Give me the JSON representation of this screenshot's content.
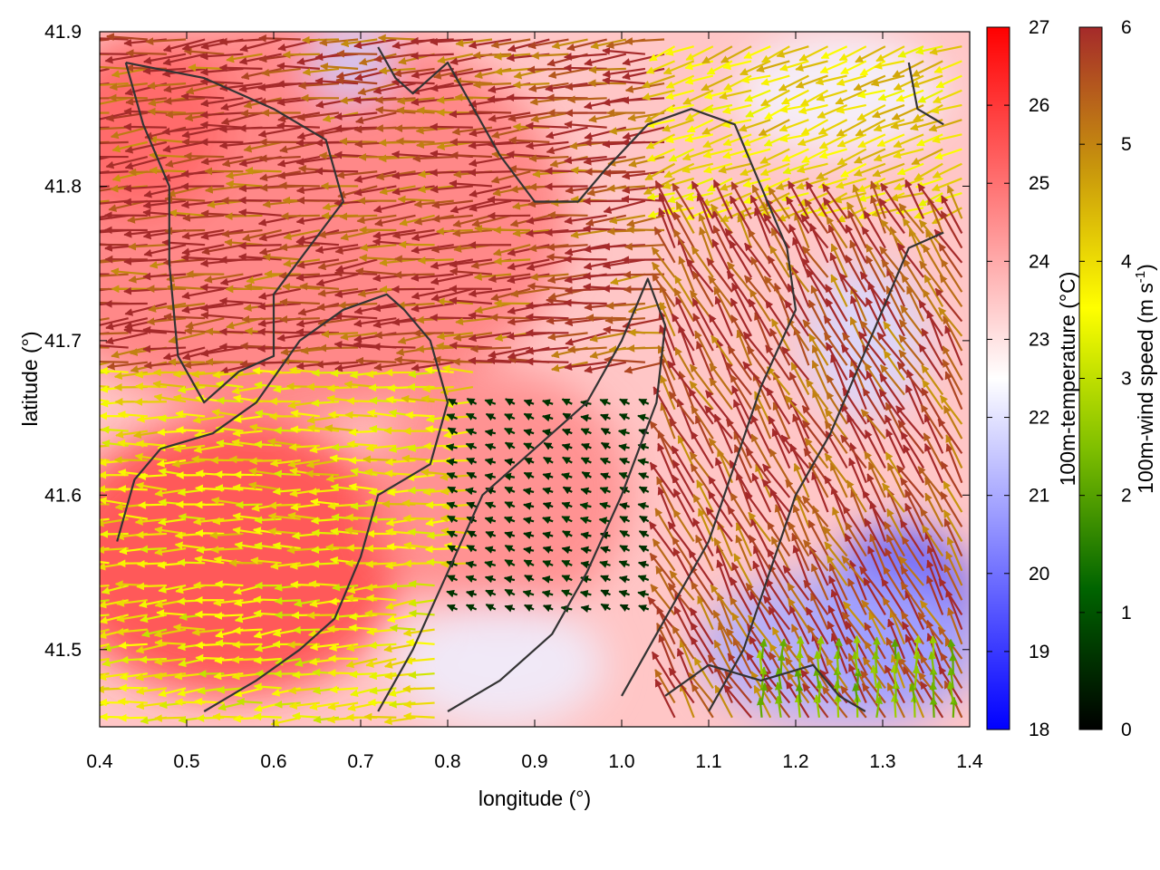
{
  "chart_data": {
    "type": "heatmap",
    "xlabel": "longitude (°)",
    "ylabel": "latitude (°)",
    "xlim": [
      0.4,
      1.4
    ],
    "ylim": [
      41.45,
      41.9
    ],
    "x_ticks": [
      "0.4",
      "0.5",
      "0.6",
      "0.7",
      "0.8",
      "0.9",
      "1.0",
      "1.1",
      "1.2",
      "1.3",
      "1.4"
    ],
    "y_ticks": [
      "41.5",
      "41.6",
      "41.7",
      "41.8",
      "41.9"
    ],
    "temperature_colorbar": {
      "label": "100m-temperature (°C)",
      "range": [
        18,
        27
      ],
      "ticks": [
        "18",
        "19",
        "20",
        "21",
        "22",
        "23",
        "24",
        "25",
        "26",
        "27"
      ],
      "colors": [
        "#0000ff",
        "#ffffff",
        "#ff0000"
      ]
    },
    "wind_colorbar": {
      "label_main": "100m-wind speed (m s",
      "label_sup": "-1",
      "label_end": ")",
      "range": [
        0,
        6
      ],
      "ticks": [
        "0",
        "1",
        "2",
        "3",
        "4",
        "5",
        "6"
      ],
      "colors": [
        "#000000",
        "#006400",
        "#7fbf00",
        "#ffff00",
        "#c8960c",
        "#a52a2a"
      ]
    },
    "temperature_patches": [
      {
        "lon": 0.62,
        "lat": 41.78,
        "rx": 0.32,
        "ry": 0.13,
        "t": 24.8
      },
      {
        "lon": 0.55,
        "lat": 41.56,
        "rx": 0.2,
        "ry": 0.09,
        "t": 25.8
      },
      {
        "lon": 0.45,
        "lat": 41.84,
        "rx": 0.1,
        "ry": 0.06,
        "t": 25.2
      },
      {
        "lon": 0.86,
        "lat": 41.6,
        "rx": 0.15,
        "ry": 0.08,
        "t": 24.6
      },
      {
        "lon": 0.86,
        "lat": 41.49,
        "rx": 0.12,
        "ry": 0.04,
        "t": 22.2
      },
      {
        "lon": 1.32,
        "lat": 41.52,
        "rx": 0.09,
        "ry": 0.06,
        "t": 19.5
      },
      {
        "lon": 1.25,
        "lat": 41.5,
        "rx": 0.16,
        "ry": 0.05,
        "t": 21.0
      },
      {
        "lon": 1.28,
        "lat": 41.7,
        "rx": 0.07,
        "ry": 0.05,
        "t": 21.8
      },
      {
        "lon": 1.25,
        "lat": 41.86,
        "rx": 0.12,
        "ry": 0.04,
        "t": 22.3
      },
      {
        "lon": 0.69,
        "lat": 41.88,
        "rx": 0.05,
        "ry": 0.025,
        "t": 21.6
      }
    ],
    "wind_field": {
      "background_temperature": 23.5,
      "field_regions": [
        {
          "name": "north",
          "lon": [
            0.4,
            1.05
          ],
          "lat": [
            41.68,
            41.9
          ],
          "dir_deg": 185,
          "speed": 6.0
        },
        {
          "name": "northeast",
          "lon": [
            1.05,
            1.4
          ],
          "lat": [
            41.78,
            41.9
          ],
          "dir_deg": 200,
          "speed": 4.2
        },
        {
          "name": "center-band",
          "lon": [
            0.4,
            0.85
          ],
          "lat": [
            41.55,
            41.68
          ],
          "dir_deg": 180,
          "speed": 4.0
        },
        {
          "name": "southwest",
          "lon": [
            0.4,
            0.8
          ],
          "lat": [
            41.45,
            41.55
          ],
          "dir_deg": 185,
          "speed": 3.8
        },
        {
          "name": "calm-center",
          "lon": [
            0.8,
            1.05
          ],
          "lat": [
            41.52,
            41.66
          ],
          "dir_deg": 160,
          "speed": 0.6
        },
        {
          "name": "east",
          "lon": [
            1.05,
            1.4
          ],
          "lat": [
            41.45,
            41.78
          ],
          "dir_deg": 120,
          "speed": 6.0
        },
        {
          "name": "southeast-coast",
          "lon": [
            1.15,
            1.4
          ],
          "lat": [
            41.45,
            41.5
          ],
          "dir_deg": 90,
          "speed": 2.5
        }
      ]
    },
    "contours": [
      [
        [
          0.43,
          41.88
        ],
        [
          0.52,
          41.87
        ],
        [
          0.6,
          41.85
        ],
        [
          0.66,
          41.83
        ],
        [
          0.68,
          41.79
        ],
        [
          0.64,
          41.76
        ],
        [
          0.6,
          41.73
        ],
        [
          0.6,
          41.69
        ],
        [
          0.56,
          41.68
        ],
        [
          0.52,
          41.66
        ],
        [
          0.49,
          41.69
        ],
        [
          0.48,
          41.75
        ],
        [
          0.48,
          41.8
        ],
        [
          0.45,
          41.84
        ],
        [
          0.43,
          41.88
        ]
      ],
      [
        [
          0.42,
          41.57
        ],
        [
          0.44,
          41.61
        ],
        [
          0.47,
          41.63
        ],
        [
          0.53,
          41.64
        ],
        [
          0.58,
          41.66
        ],
        [
          0.63,
          41.7
        ],
        [
          0.68,
          41.72
        ],
        [
          0.73,
          41.73
        ],
        [
          0.75,
          41.72
        ],
        [
          0.78,
          41.7
        ],
        [
          0.8,
          41.66
        ],
        [
          0.78,
          41.62
        ],
        [
          0.72,
          41.6
        ],
        [
          0.7,
          41.56
        ],
        [
          0.67,
          41.52
        ],
        [
          0.63,
          41.5
        ],
        [
          0.58,
          41.48
        ],
        [
          0.52,
          41.46
        ]
      ],
      [
        [
          0.72,
          41.46
        ],
        [
          0.76,
          41.5
        ],
        [
          0.8,
          41.55
        ],
        [
          0.84,
          41.6
        ],
        [
          0.9,
          41.63
        ],
        [
          0.96,
          41.66
        ],
        [
          1.0,
          41.7
        ],
        [
          1.03,
          41.74
        ],
        [
          1.05,
          41.71
        ],
        [
          1.04,
          41.66
        ],
        [
          1.0,
          41.6
        ],
        [
          0.96,
          41.55
        ],
        [
          0.92,
          41.51
        ],
        [
          0.86,
          41.48
        ],
        [
          0.8,
          41.46
        ]
      ],
      [
        [
          0.82,
          41.86
        ],
        [
          0.86,
          41.82
        ],
        [
          0.9,
          41.79
        ],
        [
          0.95,
          41.79
        ],
        [
          0.98,
          41.81
        ],
        [
          1.03,
          41.84
        ],
        [
          1.08,
          41.85
        ],
        [
          1.13,
          41.84
        ],
        [
          1.16,
          41.8
        ],
        [
          1.19,
          41.76
        ],
        [
          1.2,
          41.72
        ],
        [
          1.16,
          41.67
        ],
        [
          1.13,
          41.62
        ],
        [
          1.1,
          41.57
        ],
        [
          1.05,
          41.52
        ],
        [
          1.0,
          41.47
        ]
      ],
      [
        [
          1.1,
          41.46
        ],
        [
          1.14,
          41.5
        ],
        [
          1.17,
          41.55
        ],
        [
          1.2,
          41.6
        ],
        [
          1.24,
          41.64
        ],
        [
          1.27,
          41.68
        ],
        [
          1.3,
          41.72
        ],
        [
          1.33,
          41.76
        ],
        [
          1.37,
          41.77
        ]
      ],
      [
        [
          1.05,
          41.47
        ],
        [
          1.1,
          41.49
        ],
        [
          1.16,
          41.48
        ],
        [
          1.22,
          41.49
        ],
        [
          1.25,
          41.47
        ],
        [
          1.28,
          41.46
        ]
      ],
      [
        [
          0.72,
          41.89
        ],
        [
          0.74,
          41.87
        ],
        [
          0.76,
          41.86
        ],
        [
          0.8,
          41.88
        ],
        [
          0.82,
          41.86
        ]
      ],
      [
        [
          1.33,
          41.88
        ],
        [
          1.34,
          41.85
        ],
        [
          1.37,
          41.84
        ]
      ]
    ]
  }
}
